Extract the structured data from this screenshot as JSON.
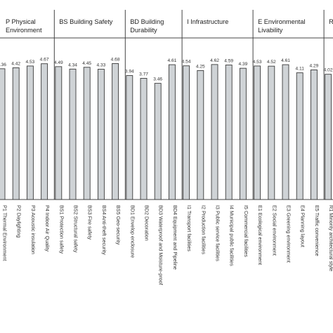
{
  "chart_data": {
    "type": "bar",
    "ylim": [
      0,
      5
    ],
    "bar_color": "#cfd3d6",
    "groups": [
      {
        "label_lines": [
          "P Physical",
          "Environment"
        ],
        "start": 0,
        "count": 4
      },
      {
        "label_lines": [
          "BS Building Safety"
        ],
        "start": 4,
        "count": 5
      },
      {
        "label_lines": [
          "BD Building",
          "Durability"
        ],
        "start": 9,
        "count": 4
      },
      {
        "label_lines": [
          "I Infrastructure"
        ],
        "start": 13,
        "count": 5
      },
      {
        "label_lines": [
          "E Environmental",
          "Livability"
        ],
        "start": 18,
        "count": 5
      },
      {
        "label_lines": [
          "R Re"
        ],
        "start": 23,
        "count": 1
      }
    ],
    "categories": [
      "P1 Thermal Environment",
      "P2 Daylighting",
      "P3 Acoustic insulation",
      "P4 Indoor Air Quality",
      "BS1 Protection safety",
      "BS2 Structural safety",
      "BS3 Fire safety",
      "BS4 Anti-theft security",
      "BS5 Geo-security",
      "BD1 Envelop enclosure",
      "BD2 Decoration",
      "BD3 Waterproof and Moisture-proof",
      "BD4 Equipment and Pipeline",
      "I1 Transport facilities",
      "I2 Production facilities",
      "I3 Public service facilities",
      "I4 Municipal public facilities",
      "I5 Commercial facilities",
      "E1 Ecological environment",
      "E2 Social environment",
      "E3 Greening environment",
      "E4 Planning layout",
      "E5 Traffic convenience",
      "R1 Minority architectural style"
    ],
    "values": [
      4.36,
      4.42,
      4.53,
      4.67,
      4.49,
      4.34,
      4.45,
      4.33,
      4.68,
      3.94,
      3.77,
      3.46,
      4.61,
      4.54,
      4.25,
      4.62,
      4.59,
      4.39,
      4.53,
      4.52,
      4.61,
      4.11,
      4.29,
      4.02
    ],
    "value_labels": [
      "4.36",
      "4.42",
      "4.53",
      "4.67",
      "4.49",
      "4.34",
      "4.45",
      "4.33",
      "4.68",
      "3.94",
      "3.77",
      "3.46",
      "4.61",
      "4.54",
      "4.25",
      "4.62",
      "4.59",
      "4.39",
      "4.53",
      "4.52",
      "4.61",
      "4.11",
      "4.29",
      "4.02"
    ]
  }
}
